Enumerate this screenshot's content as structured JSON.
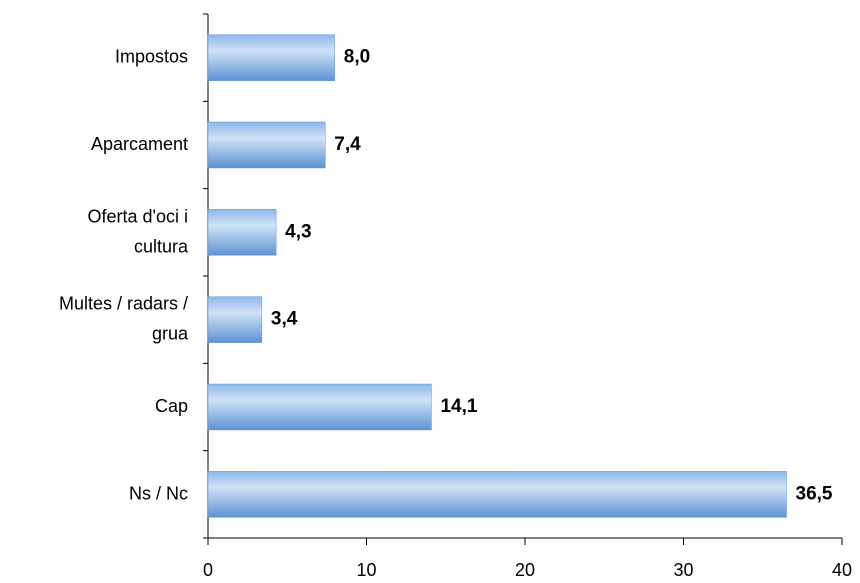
{
  "chart_data": {
    "type": "bar",
    "orientation": "horizontal",
    "categories": [
      "Impostos",
      "Aparcament",
      "Oferta d'oci i\ncultura",
      "Multes / radars /\ngrua",
      "Cap",
      "Ns / Nc"
    ],
    "values": [
      8.0,
      7.4,
      4.3,
      3.4,
      14.1,
      36.5
    ],
    "value_labels": [
      "8,0",
      "7,4",
      "4,3",
      "3,4",
      "14,1",
      "36,5"
    ],
    "color": "#7aaae0",
    "xlim": [
      0,
      40
    ],
    "xticks": [
      0,
      10,
      20,
      30,
      40
    ],
    "grid": false
  }
}
